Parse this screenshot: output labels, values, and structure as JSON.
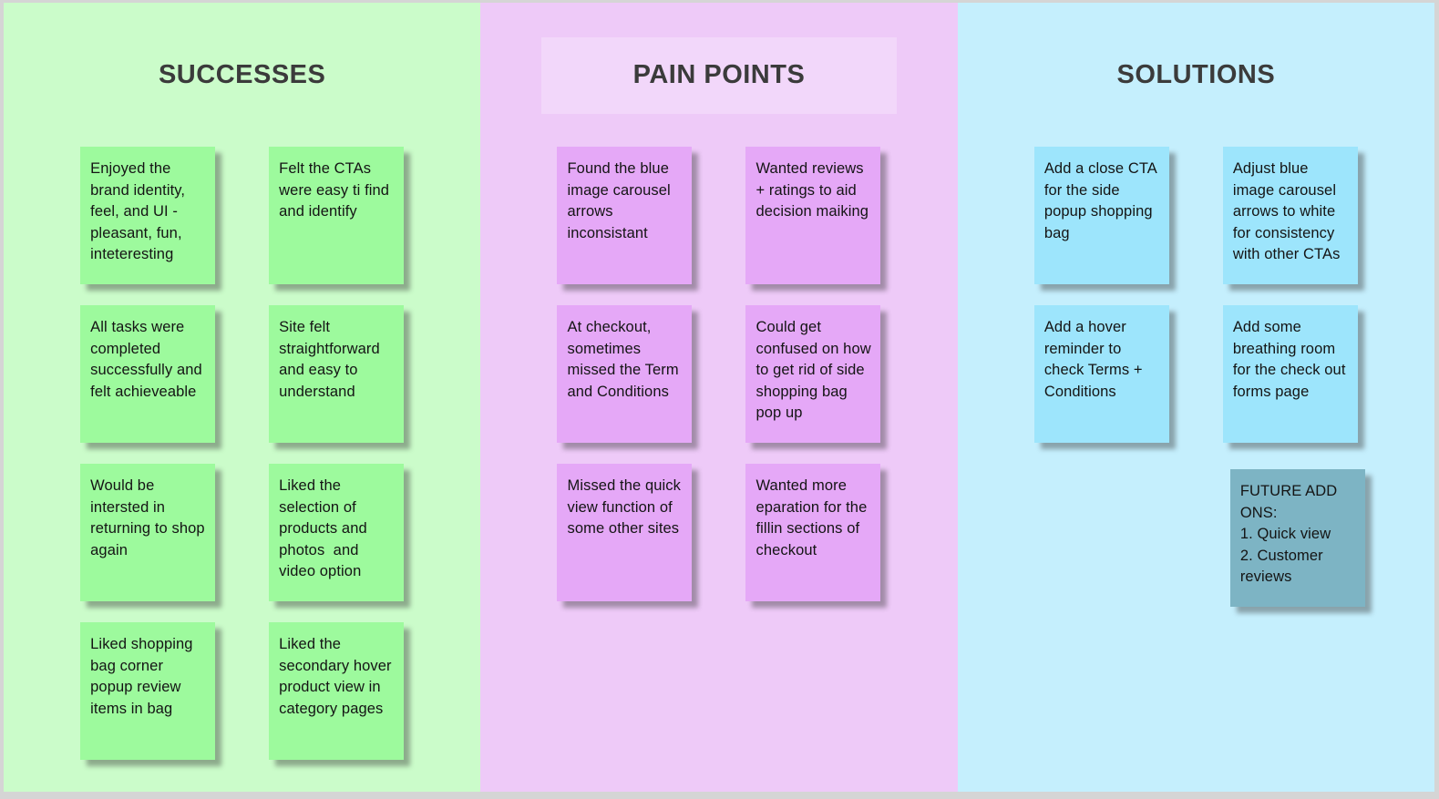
{
  "board": {
    "title_color": "#3b3b3b",
    "text_color": "#141414",
    "page_background": "#d5d5d5"
  },
  "columns": [
    {
      "id": "successes",
      "title": "SUCCESSES",
      "background": "#cbfcca",
      "note_color": "#9dfa9d",
      "notes": [
        {
          "text": "Enjoyed the brand identity, feel, and UI - pleasant, fun, inteteresting"
        },
        {
          "text": "Felt the CTAs were easy ti find and identify"
        },
        {
          "text": "All tasks were completed successfully and felt achieveable"
        },
        {
          "text": "Site felt straightforward and easy to understand"
        },
        {
          "text": "Would be intersted in returning to shop again"
        },
        {
          "text": "Liked the selection of products and photos  and video option"
        },
        {
          "text": "Liked shopping bag corner popup review items in bag"
        },
        {
          "text": "Liked the secondary hover product view in category pages"
        }
      ]
    },
    {
      "id": "pain-points",
      "title": "PAIN POINTS",
      "background": "#eecaf8",
      "note_color": "#e5a8f7",
      "notes": [
        {
          "text": "Found the blue image carousel arrows inconsistant"
        },
        {
          "text": "Wanted reviews + ratings to aid decision maiking"
        },
        {
          "text": "At checkout, sometimes missed the Term and Conditions"
        },
        {
          "text": "Could get confused on how to get rid of side shopping bag pop up"
        },
        {
          "text": "Missed the quick view function of some other sites"
        },
        {
          "text": "Wanted more eparation for the fillin sections of checkout"
        }
      ]
    },
    {
      "id": "solutions",
      "title": "SOLUTIONS",
      "background": "#c5effd",
      "note_color": "#9de5fc",
      "notes": [
        {
          "text": "Add a close CTA for the side popup shopping bag"
        },
        {
          "text": "Adjust blue image carousel arrows to white for consistency with other CTAs"
        },
        {
          "text": "Add a hover reminder to check Terms + Conditions"
        },
        {
          "text": "Add some breathing room for the check out forms page"
        },
        {
          "text": "FUTURE ADD ONS:\n1. Quick view\n2. Customer reviews",
          "color": "#7db4c4"
        }
      ]
    }
  ]
}
